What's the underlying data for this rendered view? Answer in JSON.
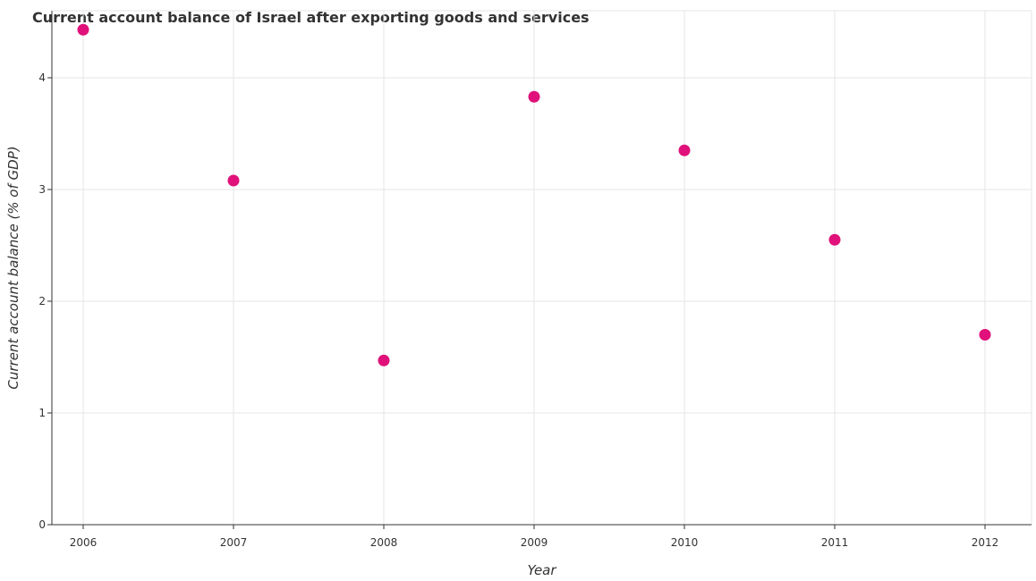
{
  "chart_data": {
    "type": "scatter",
    "title": "Current account balance of Israel after exporting goods and services",
    "xlabel": "Year",
    "ylabel": "Current account balance (% of GDP)",
    "categories": [
      "2006",
      "2007",
      "2008",
      "2009",
      "2010",
      "2011",
      "2012"
    ],
    "values": [
      4.43,
      3.08,
      1.47,
      3.83,
      3.35,
      2.55,
      1.7
    ],
    "ylim": [
      0,
      4.6
    ],
    "yticks": [
      "0",
      "1",
      "2",
      "3",
      "4"
    ],
    "grid": true,
    "marker_color": "#e0117a"
  }
}
